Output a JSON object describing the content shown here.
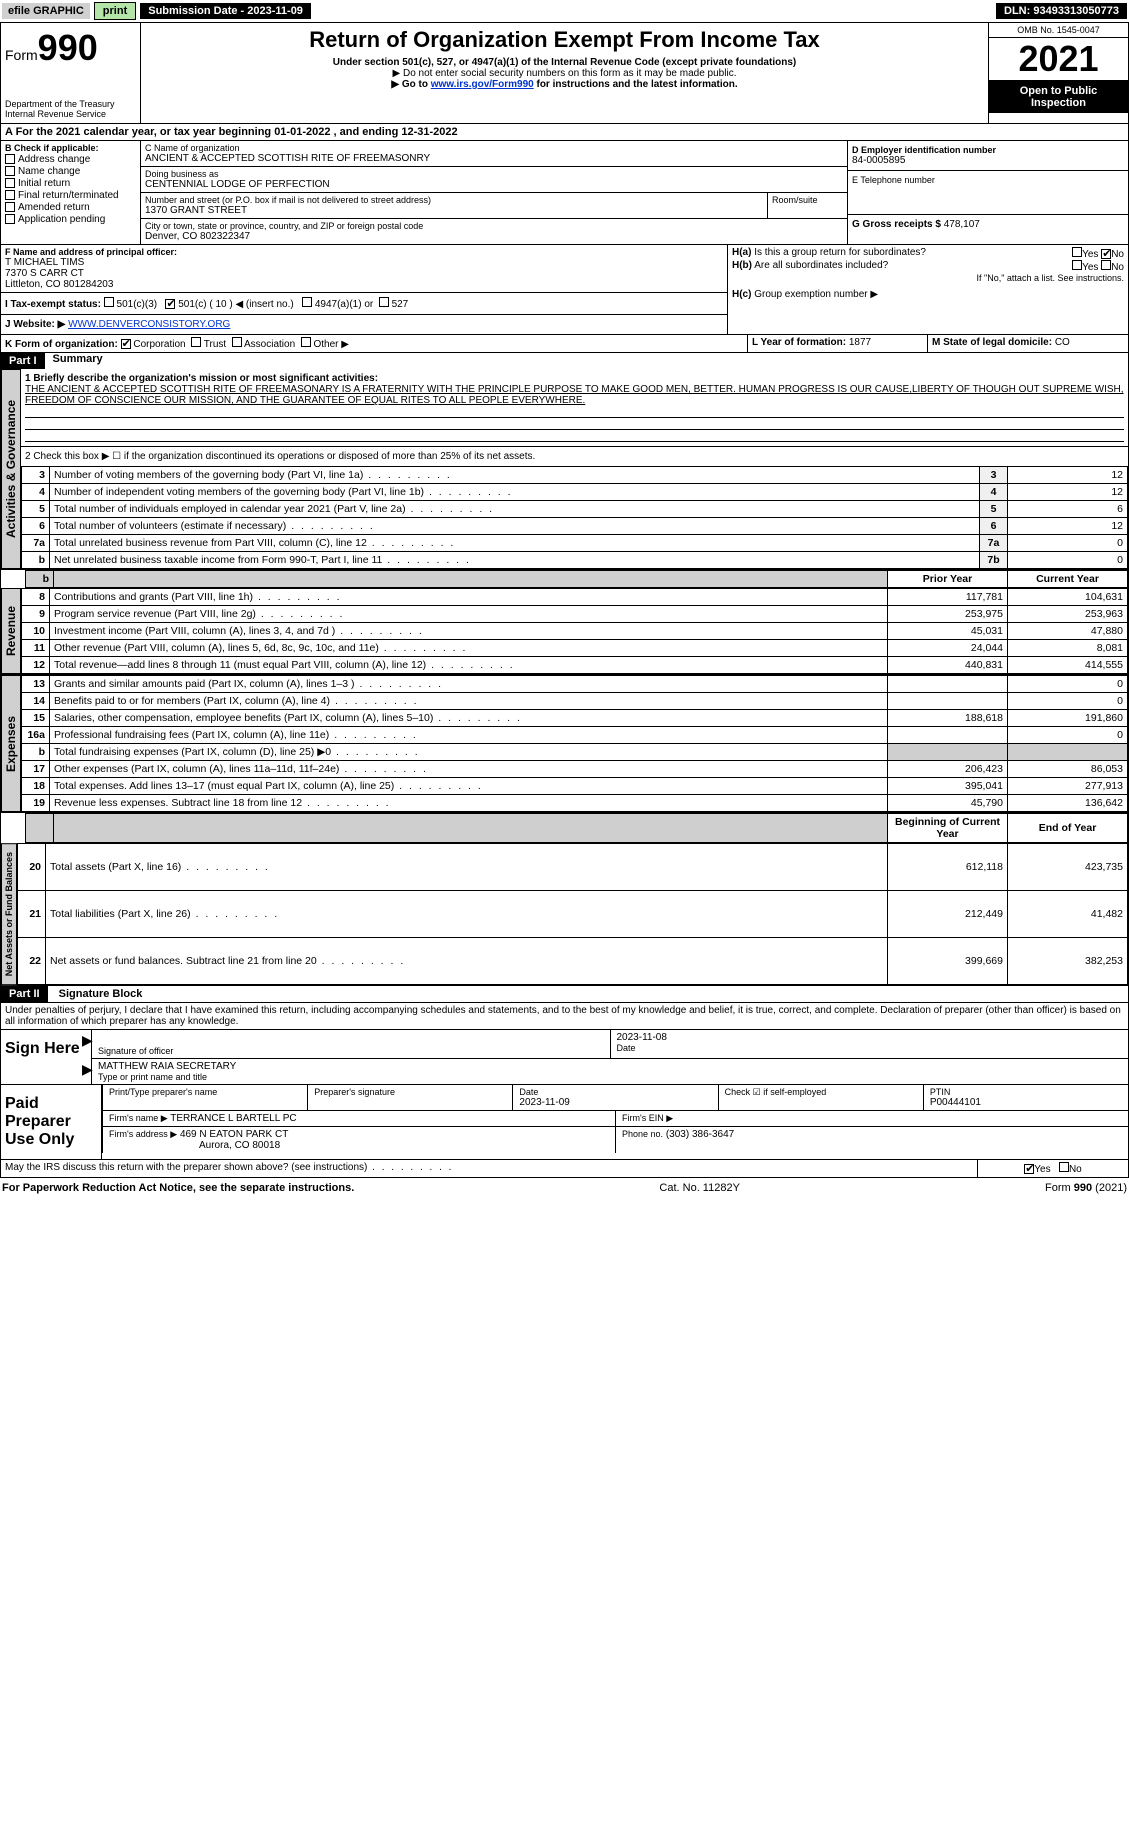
{
  "topbar": {
    "efile": "efile GRAPHIC",
    "print": "print",
    "submission": "Submission Date - 2023-11-09",
    "dln": "DLN: 93493313050773"
  },
  "header": {
    "form_prefix": "Form",
    "form_no": "990",
    "dept": "Department of the Treasury",
    "irs": "Internal Revenue Service",
    "title": "Return of Organization Exempt From Income Tax",
    "subtitle": "Under section 501(c), 527, or 4947(a)(1) of the Internal Revenue Code (except private foundations)",
    "note1": "▶ Do not enter social security numbers on this form as it may be made public.",
    "note2": "▶ Go to ",
    "note2_link": "www.irs.gov/Form990",
    "note2_tail": " for instructions and the latest information.",
    "omb": "OMB No. 1545-0047",
    "year": "2021",
    "inspection": "Open to Public Inspection"
  },
  "periodA": "A For the 2021 calendar year, or tax year beginning 01-01-2022    , and ending 12-31-2022",
  "B": {
    "label": "B Check if applicable:",
    "items": [
      "Address change",
      "Name change",
      "Initial return",
      "Final return/terminated",
      "Amended return",
      "Application pending"
    ]
  },
  "C": {
    "label": "C Name of organization",
    "name": "ANCIENT & ACCEPTED SCOTTISH RITE OF FREEMASONRY",
    "dba_label": "Doing business as",
    "dba": "CENTENNIAL LODGE OF PERFECTION",
    "addr_label": "Number and street (or P.O. box if mail is not delivered to street address)",
    "addr": "1370 GRANT STREET",
    "room_label": "Room/suite",
    "city_label": "City or town, state or province, country, and ZIP or foreign postal code",
    "city": "Denver, CO  802322347"
  },
  "D": {
    "label": "D Employer identification number",
    "value": "84-0005895"
  },
  "E": {
    "label": "E Telephone number",
    "value": ""
  },
  "G": {
    "label": "G Gross receipts $",
    "value": "478,107"
  },
  "F": {
    "label": "F  Name and address of principal officer:",
    "name": "T MICHAEL TIMS",
    "addr1": "7370 S CARR CT",
    "addr2": "Littleton, CO  801284203"
  },
  "I": {
    "label": "I  Tax-exempt status:",
    "c501c3": "501(c)(3)",
    "c501c": "501(c) ( 10 ) ◀ (insert no.)",
    "c4947": "4947(a)(1) or",
    "c527": "527"
  },
  "J": {
    "label": "J  Website: ▶",
    "value": "WWW.DENVERCONSISTORY.ORG"
  },
  "H": {
    "a_label": "H(a)  Is this a group return for subordinates?",
    "b_label": "H(b)  Are all subordinates included?",
    "b_note": "If \"No,\" attach a list. See instructions.",
    "c_label": "H(c)  Group exemption number ▶",
    "yes": "Yes",
    "no": "No"
  },
  "K": {
    "label": "K Form of organization:",
    "opts": [
      "Corporation",
      "Trust",
      "Association",
      "Other ▶"
    ]
  },
  "L": {
    "label": "L Year of formation:",
    "value": "1877"
  },
  "M": {
    "label": "M State of legal domicile:",
    "value": "CO"
  },
  "part1": {
    "hdr": "Part I",
    "title": "Summary",
    "q1_label": "1  Briefly describe the organization's mission or most significant activities:",
    "q1_text": "THE ANCIENT & ACCEPTED SCOTTISH RITE OF FREEMASONARY IS A FRATERNITY WITH THE PRINCIPLE PURPOSE TO MAKE GOOD MEN, BETTER. HUMAN PROGRESS IS OUR CAUSE,LIBERTY OF THOUGH OUT SUPREME WISH, FREEDOM OF CONSCIENCE OUR MISSION, AND THE GUARANTEE OF EQUAL RITES TO ALL PEOPLE EVERYWHERE.",
    "q2": "2  Check this box ▶ ☐  if the organization discontinued its operations or disposed of more than 25% of its net assets.",
    "tab_ag": "Activities & Governance",
    "tab_rev": "Revenue",
    "tab_exp": "Expenses",
    "tab_na": "Net Assets or Fund Balances",
    "rows_single": [
      {
        "n": "3",
        "lbl": "Number of voting members of the governing body (Part VI, line 1a)",
        "k": "3",
        "v": "12"
      },
      {
        "n": "4",
        "lbl": "Number of independent voting members of the governing body (Part VI, line 1b)",
        "k": "4",
        "v": "12"
      },
      {
        "n": "5",
        "lbl": "Total number of individuals employed in calendar year 2021 (Part V, line 2a)",
        "k": "5",
        "v": "6"
      },
      {
        "n": "6",
        "lbl": "Total number of volunteers (estimate if necessary)",
        "k": "6",
        "v": "12"
      },
      {
        "n": "7a",
        "lbl": "Total unrelated business revenue from Part VIII, column (C), line 12",
        "k": "7a",
        "v": "0"
      },
      {
        "n": "b",
        "lbl": "Net unrelated business taxable income from Form 990-T, Part I, line 11",
        "k": "7b",
        "v": "0"
      }
    ],
    "col_prior": "Prior Year",
    "col_current": "Current Year",
    "col_begin": "Beginning of Current Year",
    "col_end": "End of Year",
    "rev_rows": [
      {
        "n": "8",
        "lbl": "Contributions and grants (Part VIII, line 1h)",
        "p": "117,781",
        "c": "104,631"
      },
      {
        "n": "9",
        "lbl": "Program service revenue (Part VIII, line 2g)",
        "p": "253,975",
        "c": "253,963"
      },
      {
        "n": "10",
        "lbl": "Investment income (Part VIII, column (A), lines 3, 4, and 7d )",
        "p": "45,031",
        "c": "47,880"
      },
      {
        "n": "11",
        "lbl": "Other revenue (Part VIII, column (A), lines 5, 6d, 8c, 9c, 10c, and 11e)",
        "p": "24,044",
        "c": "8,081"
      },
      {
        "n": "12",
        "lbl": "Total revenue—add lines 8 through 11 (must equal Part VIII, column (A), line 12)",
        "p": "440,831",
        "c": "414,555"
      }
    ],
    "exp_rows": [
      {
        "n": "13",
        "lbl": "Grants and similar amounts paid (Part IX, column (A), lines 1–3 )",
        "p": "",
        "c": "0"
      },
      {
        "n": "14",
        "lbl": "Benefits paid to or for members (Part IX, column (A), line 4)",
        "p": "",
        "c": "0"
      },
      {
        "n": "15",
        "lbl": "Salaries, other compensation, employee benefits (Part IX, column (A), lines 5–10)",
        "p": "188,618",
        "c": "191,860"
      },
      {
        "n": "16a",
        "lbl": "Professional fundraising fees (Part IX, column (A), line 11e)",
        "p": "",
        "c": "0"
      },
      {
        "n": "b",
        "lbl": "Total fundraising expenses (Part IX, column (D), line 25) ▶0",
        "p": "shade",
        "c": "shade"
      },
      {
        "n": "17",
        "lbl": "Other expenses (Part IX, column (A), lines 11a–11d, 11f–24e)",
        "p": "206,423",
        "c": "86,053"
      },
      {
        "n": "18",
        "lbl": "Total expenses. Add lines 13–17 (must equal Part IX, column (A), line 25)",
        "p": "395,041",
        "c": "277,913"
      },
      {
        "n": "19",
        "lbl": "Revenue less expenses. Subtract line 18 from line 12",
        "p": "45,790",
        "c": "136,642"
      }
    ],
    "na_rows": [
      {
        "n": "20",
        "lbl": "Total assets (Part X, line 16)",
        "p": "612,118",
        "c": "423,735"
      },
      {
        "n": "21",
        "lbl": "Total liabilities (Part X, line 26)",
        "p": "212,449",
        "c": "41,482"
      },
      {
        "n": "22",
        "lbl": "Net assets or fund balances. Subtract line 21 from line 20",
        "p": "399,669",
        "c": "382,253"
      }
    ]
  },
  "part2": {
    "hdr": "Part II",
    "title": "Signature Block",
    "declaration": "Under penalties of perjury, I declare that I have examined this return, including accompanying schedules and statements, and to the best of my knowledge and belief, it is true, correct, and complete. Declaration of preparer (other than officer) is based on all information of which preparer has any knowledge.",
    "sign_here": "Sign Here",
    "sig_officer": "Signature of officer",
    "date_label": "Date",
    "sig_date": "2023-11-08",
    "officer_name": "MATTHEW RAIA  SECRETARY",
    "type_name": "Type or print name and title",
    "paid": "Paid Preparer Use Only",
    "prep_name_label": "Print/Type preparer's name",
    "prep_sig_label": "Preparer's signature",
    "prep_date": "2023-11-09",
    "check_if": "Check ☑ if self-employed",
    "ptin_label": "PTIN",
    "ptin": "P00444101",
    "firm_name_label": "Firm's name    ▶",
    "firm_name": "TERRANCE L BARTELL PC",
    "firm_ein_label": "Firm's EIN ▶",
    "firm_addr_label": "Firm's address ▶",
    "firm_addr1": "469 N EATON PARK CT",
    "firm_addr2": "Aurora, CO  80018",
    "phone_label": "Phone no.",
    "phone": "(303) 386-3647",
    "discuss": "May the IRS discuss this return with the preparer shown above? (see instructions)",
    "discuss_yes": "Yes",
    "discuss_no": "No"
  },
  "footer": {
    "left": "For Paperwork Reduction Act Notice, see the separate instructions.",
    "mid": "Cat. No. 11282Y",
    "right": "Form 990 (2021)"
  }
}
